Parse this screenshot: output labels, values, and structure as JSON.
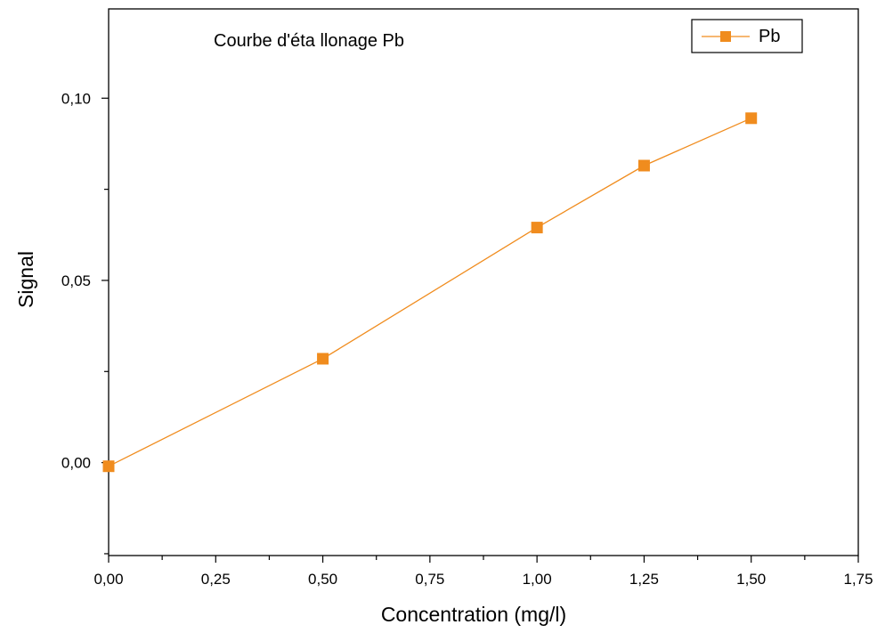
{
  "chart_data": {
    "type": "line",
    "title": "Courbe d'éta  llonage Pb",
    "xlabel": "Concentration (mg/l)",
    "ylabel": "Signal",
    "xlim": [
      0,
      1.75
    ],
    "ylim": [
      -0.0255,
      0.1245
    ],
    "x_ticks": [
      0,
      0.25,
      0.5,
      0.75,
      1.0,
      1.25,
      1.5,
      1.75
    ],
    "x_tick_labels": [
      "0,00",
      "0,25",
      "0,50",
      "0,75",
      "1,00",
      "1,25",
      "1,50",
      "1,75"
    ],
    "y_ticks": [
      0,
      0.05,
      0.1
    ],
    "y_tick_labels": [
      "0,00",
      "0,05",
      "0,10"
    ],
    "y_minor_ticks": [
      -0.025,
      0.025,
      0.075
    ],
    "grid": false,
    "legend_position": "top-right",
    "series": [
      {
        "name": "Pb",
        "color": "#f08c1e",
        "marker": "square",
        "x": [
          0,
          0.5,
          1.0,
          1.25,
          1.5
        ],
        "y": [
          -0.001,
          0.0285,
          0.0645,
          0.0815,
          0.0945
        ]
      }
    ]
  }
}
